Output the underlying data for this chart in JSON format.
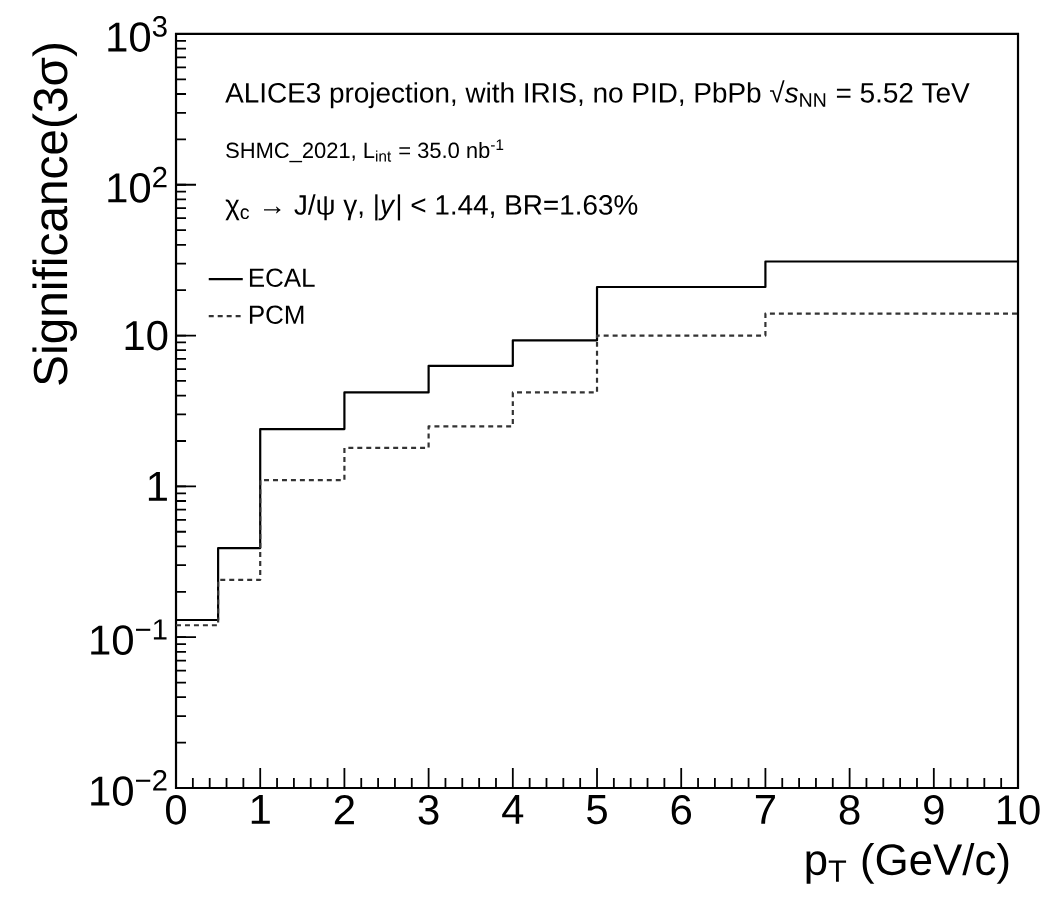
{
  "chart_data": {
    "type": "histogram",
    "xlabel": "p$_{T}$ (GeV/c)",
    "ylabel": "Significance(3σ)",
    "log": "y",
    "annotations": [
      "ALICE3 projection, with IRIS, no PID, PbPb √*s*$_{NN}$ = 5.52 TeV",
      "SHMC_2021, L$_{int}$ = 35.0 nb$^{-1}$",
      "χ$_{c}$ → J/ψ γ, |*y*| < 1.44, BR=1.63%"
    ],
    "bins": [
      0,
      0.5,
      1,
      2,
      3,
      4,
      5,
      7,
      10
    ],
    "series": [
      {
        "name": "ECAL",
        "color": "#000000",
        "line_style": "solid",
        "values": [
          0.13,
          0.39,
          2.4,
          4.2,
          6.3,
          9.3,
          21,
          31
        ]
      },
      {
        "name": "PCM",
        "color": "#333333",
        "line_style": "dotted",
        "values": [
          0.12,
          0.24,
          1.1,
          1.8,
          2.5,
          4.2,
          10,
          14
        ]
      }
    ],
    "xlim": [
      0,
      10
    ],
    "xticks": [
      0,
      1,
      2,
      3,
      4,
      5,
      6,
      7,
      8,
      9,
      10
    ],
    "ylim": [
      0.01,
      1000
    ],
    "yticks": [
      {
        "value": 0.01,
        "label": "10$^{−2}$"
      },
      {
        "value": 0.1,
        "label": "10$^{−1}$"
      },
      1,
      10,
      {
        "value": 100,
        "label": "10$^{2}$"
      },
      {
        "value": 1000,
        "label": "10$^{3}$"
      }
    ],
    "legend": "top left",
    "grid": false
  }
}
